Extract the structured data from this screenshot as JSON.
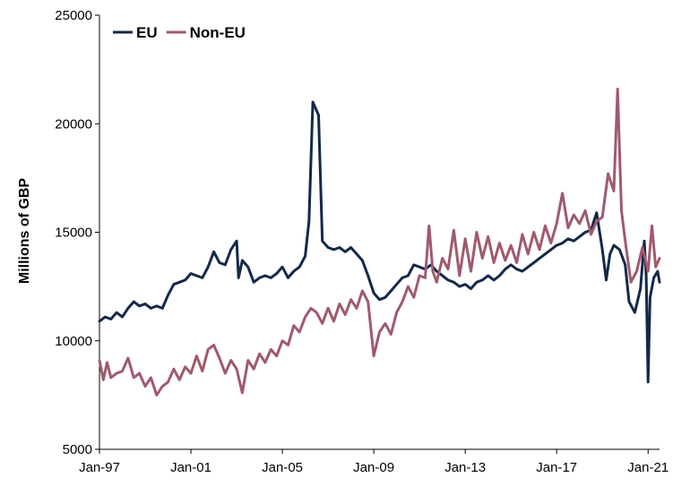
{
  "chart_data": {
    "type": "line",
    "title": "",
    "xlabel": "",
    "ylabel": "Millions of GBP",
    "ylim": [
      5000,
      25000
    ],
    "yticks": [
      "5000",
      "10000",
      "15000",
      "20000",
      "25000"
    ],
    "xticks": [
      "Jan-97",
      "Jan-01",
      "Jan-05",
      "Jan-09",
      "Jan-13",
      "Jan-17",
      "Jan-21"
    ],
    "x_range": [
      "1997-01",
      "2021-07"
    ],
    "grid": false,
    "legend": "top-left",
    "series": [
      {
        "name": "EU",
        "color": "#13294b",
        "points": [
          [
            "1997-01",
            10900
          ],
          [
            "1997-04",
            11100
          ],
          [
            "1997-07",
            11000
          ],
          [
            "1997-10",
            11300
          ],
          [
            "1998-01",
            11100
          ],
          [
            "1998-04",
            11500
          ],
          [
            "1998-07",
            11800
          ],
          [
            "1998-10",
            11600
          ],
          [
            "1999-01",
            11700
          ],
          [
            "1999-04",
            11500
          ],
          [
            "1999-07",
            11600
          ],
          [
            "1999-10",
            11500
          ],
          [
            "2000-01",
            12100
          ],
          [
            "2000-04",
            12600
          ],
          [
            "2000-07",
            12700
          ],
          [
            "2000-10",
            12800
          ],
          [
            "2001-01",
            13100
          ],
          [
            "2001-04",
            13000
          ],
          [
            "2001-07",
            12900
          ],
          [
            "2001-10",
            13400
          ],
          [
            "2002-01",
            14100
          ],
          [
            "2002-04",
            13600
          ],
          [
            "2002-07",
            13500
          ],
          [
            "2002-10",
            14200
          ],
          [
            "2003-01",
            14600
          ],
          [
            "2003-02",
            12900
          ],
          [
            "2003-04",
            13700
          ],
          [
            "2003-07",
            13400
          ],
          [
            "2003-10",
            12700
          ],
          [
            "2004-01",
            12900
          ],
          [
            "2004-04",
            13000
          ],
          [
            "2004-07",
            12900
          ],
          [
            "2004-10",
            13100
          ],
          [
            "2005-01",
            13400
          ],
          [
            "2005-04",
            12900
          ],
          [
            "2005-07",
            13200
          ],
          [
            "2005-10",
            13400
          ],
          [
            "2006-01",
            13900
          ],
          [
            "2006-03",
            15500
          ],
          [
            "2006-05",
            21000
          ],
          [
            "2006-08",
            20400
          ],
          [
            "2006-10",
            14600
          ],
          [
            "2007-01",
            14300
          ],
          [
            "2007-04",
            14200
          ],
          [
            "2007-07",
            14300
          ],
          [
            "2007-10",
            14100
          ],
          [
            "2008-01",
            14300
          ],
          [
            "2008-04",
            14000
          ],
          [
            "2008-07",
            13700
          ],
          [
            "2008-10",
            13000
          ],
          [
            "2009-01",
            12200
          ],
          [
            "2009-04",
            11900
          ],
          [
            "2009-07",
            12000
          ],
          [
            "2009-10",
            12300
          ],
          [
            "2010-01",
            12600
          ],
          [
            "2010-04",
            12900
          ],
          [
            "2010-07",
            13000
          ],
          [
            "2010-10",
            13500
          ],
          [
            "2011-01",
            13400
          ],
          [
            "2011-04",
            13300
          ],
          [
            "2011-07",
            13500
          ],
          [
            "2011-10",
            13200
          ],
          [
            "2012-01",
            13000
          ],
          [
            "2012-04",
            12800
          ],
          [
            "2012-07",
            12700
          ],
          [
            "2012-10",
            12500
          ],
          [
            "2013-01",
            12600
          ],
          [
            "2013-04",
            12400
          ],
          [
            "2013-07",
            12700
          ],
          [
            "2013-10",
            12800
          ],
          [
            "2014-01",
            13000
          ],
          [
            "2014-04",
            12800
          ],
          [
            "2014-07",
            13000
          ],
          [
            "2014-10",
            13300
          ],
          [
            "2015-01",
            13500
          ],
          [
            "2015-04",
            13300
          ],
          [
            "2015-07",
            13200
          ],
          [
            "2015-10",
            13400
          ],
          [
            "2016-01",
            13600
          ],
          [
            "2016-04",
            13800
          ],
          [
            "2016-07",
            14000
          ],
          [
            "2016-10",
            14200
          ],
          [
            "2017-01",
            14400
          ],
          [
            "2017-04",
            14500
          ],
          [
            "2017-07",
            14700
          ],
          [
            "2017-10",
            14600
          ],
          [
            "2018-01",
            14800
          ],
          [
            "2018-04",
            15000
          ],
          [
            "2018-07",
            15100
          ],
          [
            "2018-10",
            15900
          ],
          [
            "2019-01",
            14200
          ],
          [
            "2019-03",
            12800
          ],
          [
            "2019-05",
            14000
          ],
          [
            "2019-07",
            14400
          ],
          [
            "2019-10",
            14200
          ],
          [
            "2020-01",
            13500
          ],
          [
            "2020-03",
            11800
          ],
          [
            "2020-06",
            11300
          ],
          [
            "2020-09",
            12400
          ],
          [
            "2020-11",
            14600
          ],
          [
            "2020-12",
            13000
          ],
          [
            "2021-01",
            8100
          ],
          [
            "2021-02",
            12000
          ],
          [
            "2021-04",
            12900
          ],
          [
            "2021-06",
            13200
          ],
          [
            "2021-07",
            12700
          ]
        ]
      },
      {
        "name": "Non-EU",
        "color": "#a05a6c",
        "points": [
          [
            "1997-01",
            9100
          ],
          [
            "1997-03",
            8200
          ],
          [
            "1997-05",
            9000
          ],
          [
            "1997-07",
            8300
          ],
          [
            "1997-10",
            8500
          ],
          [
            "1998-01",
            8600
          ],
          [
            "1998-04",
            9200
          ],
          [
            "1998-07",
            8300
          ],
          [
            "1998-10",
            8500
          ],
          [
            "1999-01",
            7900
          ],
          [
            "1999-04",
            8300
          ],
          [
            "1999-07",
            7500
          ],
          [
            "1999-10",
            7900
          ],
          [
            "2000-01",
            8100
          ],
          [
            "2000-04",
            8700
          ],
          [
            "2000-07",
            8200
          ],
          [
            "2000-10",
            8800
          ],
          [
            "2001-01",
            8500
          ],
          [
            "2001-04",
            9300
          ],
          [
            "2001-07",
            8600
          ],
          [
            "2001-10",
            9600
          ],
          [
            "2002-01",
            9800
          ],
          [
            "2002-04",
            9200
          ],
          [
            "2002-07",
            8500
          ],
          [
            "2002-10",
            9100
          ],
          [
            "2003-01",
            8700
          ],
          [
            "2003-04",
            7600
          ],
          [
            "2003-07",
            9100
          ],
          [
            "2003-10",
            8700
          ],
          [
            "2004-01",
            9400
          ],
          [
            "2004-04",
            9000
          ],
          [
            "2004-07",
            9600
          ],
          [
            "2004-10",
            9300
          ],
          [
            "2005-01",
            10000
          ],
          [
            "2005-04",
            9800
          ],
          [
            "2005-07",
            10700
          ],
          [
            "2005-10",
            10400
          ],
          [
            "2006-01",
            11100
          ],
          [
            "2006-04",
            11500
          ],
          [
            "2006-07",
            11300
          ],
          [
            "2006-10",
            10800
          ],
          [
            "2007-01",
            11500
          ],
          [
            "2007-04",
            10900
          ],
          [
            "2007-07",
            11700
          ],
          [
            "2007-10",
            11200
          ],
          [
            "2008-01",
            11900
          ],
          [
            "2008-04",
            11500
          ],
          [
            "2008-07",
            12300
          ],
          [
            "2008-10",
            11800
          ],
          [
            "2009-01",
            9300
          ],
          [
            "2009-04",
            10400
          ],
          [
            "2009-07",
            10800
          ],
          [
            "2009-10",
            10300
          ],
          [
            "2010-01",
            11300
          ],
          [
            "2010-04",
            11800
          ],
          [
            "2010-07",
            12500
          ],
          [
            "2010-10",
            12000
          ],
          [
            "2011-01",
            13000
          ],
          [
            "2011-04",
            12900
          ],
          [
            "2011-06",
            15300
          ],
          [
            "2011-08",
            13200
          ],
          [
            "2011-10",
            12700
          ],
          [
            "2012-01",
            13800
          ],
          [
            "2012-04",
            13300
          ],
          [
            "2012-07",
            15100
          ],
          [
            "2012-10",
            13000
          ],
          [
            "2013-01",
            14700
          ],
          [
            "2013-04",
            13200
          ],
          [
            "2013-07",
            15000
          ],
          [
            "2013-10",
            13800
          ],
          [
            "2014-01",
            14800
          ],
          [
            "2014-04",
            13600
          ],
          [
            "2014-07",
            14500
          ],
          [
            "2014-10",
            13700
          ],
          [
            "2015-01",
            14400
          ],
          [
            "2015-04",
            13600
          ],
          [
            "2015-07",
            14900
          ],
          [
            "2015-10",
            14000
          ],
          [
            "2016-01",
            15000
          ],
          [
            "2016-04",
            14200
          ],
          [
            "2016-07",
            15300
          ],
          [
            "2016-10",
            14500
          ],
          [
            "2017-01",
            15400
          ],
          [
            "2017-04",
            16800
          ],
          [
            "2017-07",
            15200
          ],
          [
            "2017-10",
            15800
          ],
          [
            "2018-01",
            15400
          ],
          [
            "2018-04",
            16000
          ],
          [
            "2018-07",
            14900
          ],
          [
            "2018-10",
            15500
          ],
          [
            "2019-01",
            15700
          ],
          [
            "2019-04",
            17700
          ],
          [
            "2019-07",
            16900
          ],
          [
            "2019-09",
            21600
          ],
          [
            "2019-11",
            16000
          ],
          [
            "2020-01",
            14600
          ],
          [
            "2020-04",
            12700
          ],
          [
            "2020-07",
            13200
          ],
          [
            "2020-10",
            14300
          ],
          [
            "2021-01",
            13200
          ],
          [
            "2021-03",
            15300
          ],
          [
            "2021-05",
            13400
          ],
          [
            "2021-07",
            13800
          ]
        ]
      }
    ]
  }
}
